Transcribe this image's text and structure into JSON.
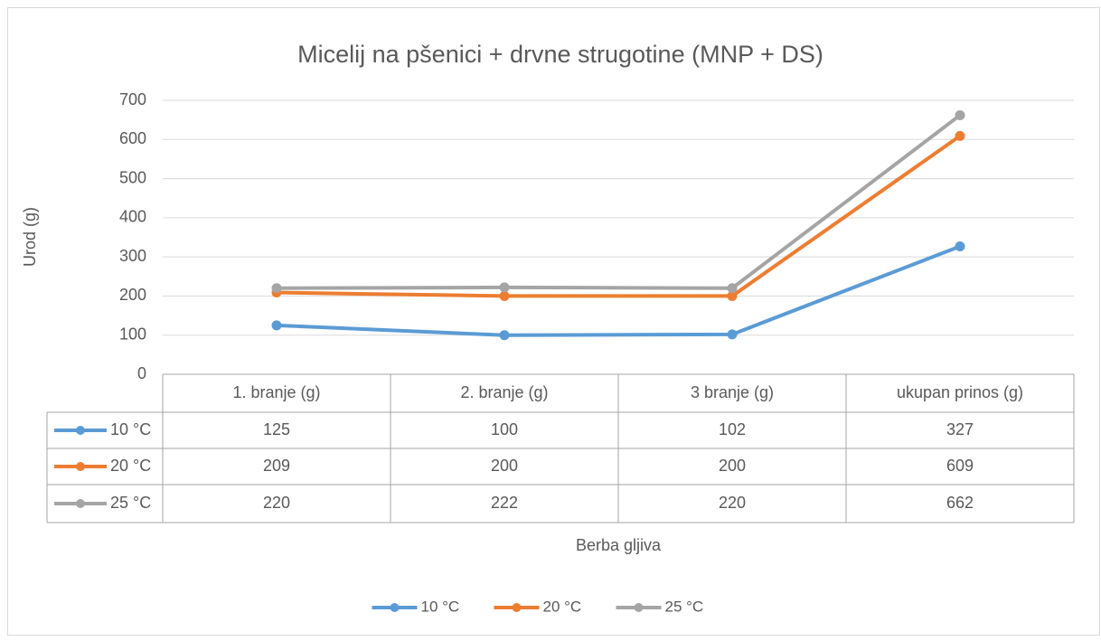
{
  "chart_data": {
    "type": "line",
    "title": "Micelij na pšenici + drvne strugotine (MNP  + DS)",
    "x_label": "Berba gljiva",
    "y_label": "Urod (g)",
    "categories": [
      "1. branje (g)",
      "2. branje (g)",
      "3 branje (g)",
      "ukupan prinos (g)"
    ],
    "series": [
      {
        "name": "10 °C",
        "color": "#5b9bd5",
        "values": [
          125,
          100,
          102,
          327
        ]
      },
      {
        "name": "20 °C",
        "color": "#ed7d31",
        "values": [
          209,
          200,
          200,
          609
        ]
      },
      {
        "name": "25 °C",
        "color": "#a5a5a5",
        "values": [
          220,
          222,
          220,
          662
        ]
      }
    ],
    "ylim": [
      0,
      700
    ],
    "yticks": [
      0,
      100,
      200,
      300,
      400,
      500,
      600,
      700
    ],
    "grid": true,
    "legend": "bottom",
    "data_table": true
  }
}
